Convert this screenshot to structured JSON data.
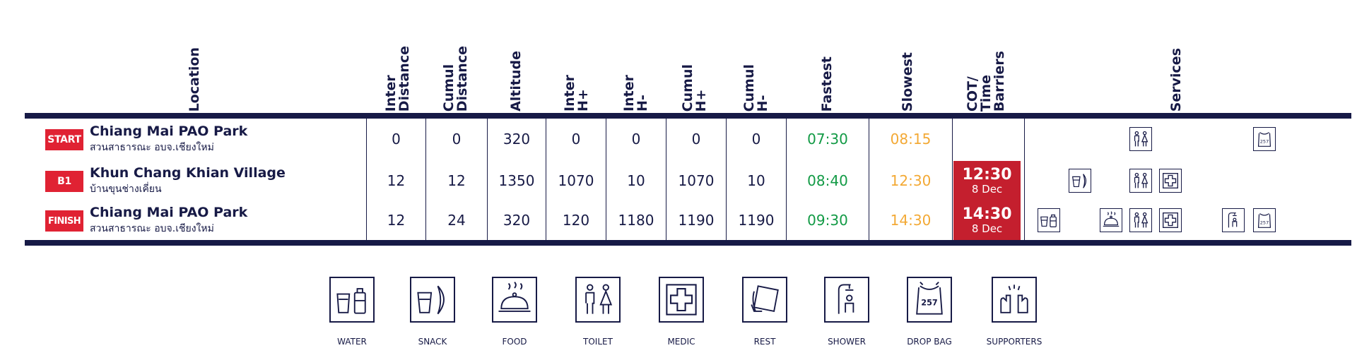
{
  "headers": {
    "location": "Location",
    "inter_distance": "Inter\nDistance",
    "cumul_distance": "Cumul\nDistance",
    "altitude": "Altitude",
    "inter_hplus": "Inter\nH+",
    "inter_hminus": "Inter\nH-",
    "cumul_hplus": "Cumul\nH+",
    "cumul_hminus": "Cumul\nH-",
    "fastest": "Fastest",
    "slowest": "Slowest",
    "cot": "COT/\nTime\nBarriers",
    "services": "Services"
  },
  "rows": [
    {
      "badge": "START",
      "name": "Chiang Mai PAO Park",
      "thai": "สวนสาธารณะ อบจ.เชียงใหม่",
      "inter_distance": "0",
      "cumul_distance": "0",
      "altitude": "320",
      "inter_hplus": "0",
      "inter_hminus": "0",
      "cumul_hplus": "0",
      "cumul_hminus": "0",
      "fastest": "07:30",
      "slowest": "08:15",
      "cot": null,
      "services": [
        "toilet",
        "drop-bag"
      ]
    },
    {
      "badge": "B1",
      "name": "Khun Chang Khian Village",
      "thai": "บ้านขุนช่างเคี่ยน",
      "inter_distance": "12",
      "cumul_distance": "12",
      "altitude": "1350",
      "inter_hplus": "1070",
      "inter_hminus": "10",
      "cumul_hplus": "1070",
      "cumul_hminus": "10",
      "fastest": "08:40",
      "slowest": "12:30",
      "cot": {
        "time": "12:30",
        "date": "8 Dec"
      },
      "services": [
        "snack",
        "toilet",
        "medic"
      ]
    },
    {
      "badge": "FINISH",
      "name": "Chiang Mai PAO Park",
      "thai": "สวนสาธารณะ อบจ.เชียงใหม่",
      "inter_distance": "12",
      "cumul_distance": "24",
      "altitude": "320",
      "inter_hplus": "120",
      "inter_hminus": "1180",
      "cumul_hplus": "1190",
      "cumul_hminus": "1190",
      "fastest": "09:30",
      "slowest": "14:30",
      "cot": {
        "time": "14:30",
        "date": "8 Dec"
      },
      "services": [
        "water",
        "food",
        "toilet",
        "medic",
        "shower",
        "drop-bag"
      ]
    }
  ],
  "drop_bag_number": "257",
  "legend": [
    {
      "icon": "water-icon",
      "label": "WATER"
    },
    {
      "icon": "snack-icon",
      "label": "SNACK"
    },
    {
      "icon": "food-icon",
      "label": "FOOD"
    },
    {
      "icon": "toilet-icon",
      "label": "TOILET"
    },
    {
      "icon": "medic-icon",
      "label": "MEDIC"
    },
    {
      "icon": "rest-icon",
      "label": "REST"
    },
    {
      "icon": "shower-icon",
      "label": "SHOWER"
    },
    {
      "icon": "drop-bag-icon",
      "label": "DROP BAG"
    },
    {
      "icon": "supporters-icon",
      "label": "SUPPORTERS"
    }
  ],
  "colors": {
    "navy": "#171a46",
    "badge_red": "#e02233",
    "cot_red": "#c41f2e",
    "fastest_green": "#129a45",
    "slowest_orange": "#f3a935"
  }
}
